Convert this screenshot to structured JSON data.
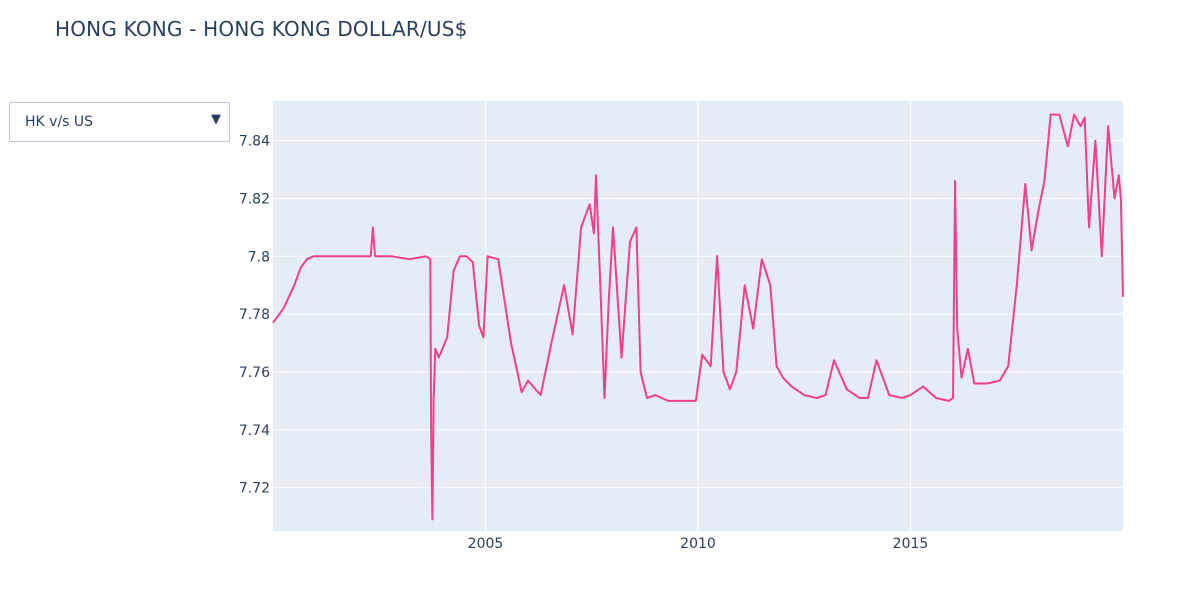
{
  "title": "HONG KONG - HONG KONG DOLLAR/US$",
  "dropdown": {
    "selected": "HK v/s US",
    "arrow_icon": "triangle-down-icon"
  },
  "colors": {
    "line": "#f0408a",
    "plot_bg": "#e5ecf6",
    "grid": "#ffffff",
    "text": "#2a3f5f"
  },
  "chart_data": {
    "type": "line",
    "title": "HONG KONG - HONG KONG DOLLAR/US$",
    "xlabel": "",
    "ylabel": "",
    "xlim": [
      2000.0,
      2020.0
    ],
    "ylim": [
      7.705,
      7.8537
    ],
    "x_ticks": [
      2005,
      2010,
      2015
    ],
    "y_ticks": [
      7.72,
      7.74,
      7.76,
      7.78,
      7.8,
      7.82,
      7.84
    ],
    "y_tick_labels": [
      "7.72",
      "7.74",
      "7.76",
      "7.78",
      "7.8",
      "7.82",
      "7.84"
    ],
    "grid": true,
    "series": [
      {
        "x": [
          2000.0,
          2000.25,
          2000.5,
          2000.65,
          2000.8,
          2000.95,
          2001.1,
          2001.3,
          2001.6,
          2002.0,
          2002.3,
          2002.35,
          2002.4,
          2002.8,
          2003.2,
          2003.6,
          2003.7,
          2003.72,
          2003.75,
          2003.78,
          2003.82,
          2003.9,
          2004.1,
          2004.25,
          2004.4,
          2004.55,
          2004.7,
          2004.85,
          2004.95,
          2005.05,
          2005.3,
          2005.6,
          2005.75,
          2005.85,
          2006.0,
          2006.3,
          2006.55,
          2006.85,
          2007.05,
          2007.25,
          2007.45,
          2007.55,
          2007.6,
          2007.7,
          2007.8,
          2007.9,
          2008.0,
          2008.2,
          2008.4,
          2008.55,
          2008.65,
          2008.8,
          2009.0,
          2009.3,
          2009.6,
          2009.95,
          2010.1,
          2010.3,
          2010.45,
          2010.6,
          2010.75,
          2010.9,
          2011.1,
          2011.3,
          2011.5,
          2011.7,
          2011.85,
          2012.0,
          2012.2,
          2012.5,
          2012.8,
          2013.0,
          2013.2,
          2013.5,
          2013.8,
          2014.0,
          2014.2,
          2014.5,
          2014.8,
          2015.0,
          2015.3,
          2015.6,
          2015.9,
          2016.0,
          2016.05,
          2016.1,
          2016.2,
          2016.35,
          2016.5,
          2016.8,
          2017.1,
          2017.3,
          2017.5,
          2017.7,
          2017.85,
          2018.0,
          2018.15,
          2018.3,
          2018.5,
          2018.7,
          2018.85,
          2019.0,
          2019.1,
          2019.2,
          2019.35,
          2019.5,
          2019.65,
          2019.8,
          2019.9,
          2019.95,
          2020.0
        ],
        "values": [
          7.777,
          7.782,
          7.79,
          7.796,
          7.799,
          7.8,
          7.8,
          7.8,
          7.8,
          7.8,
          7.8,
          7.81,
          7.8,
          7.8,
          7.799,
          7.8,
          7.799,
          7.74,
          7.709,
          7.75,
          7.768,
          7.765,
          7.772,
          7.795,
          7.8,
          7.8,
          7.798,
          7.776,
          7.772,
          7.8,
          7.799,
          7.77,
          7.76,
          7.753,
          7.757,
          7.752,
          7.77,
          7.79,
          7.773,
          7.81,
          7.818,
          7.808,
          7.828,
          7.79,
          7.751,
          7.785,
          7.81,
          7.765,
          7.805,
          7.81,
          7.76,
          7.751,
          7.752,
          7.75,
          7.75,
          7.75,
          7.766,
          7.762,
          7.8,
          7.76,
          7.754,
          7.76,
          7.79,
          7.775,
          7.799,
          7.79,
          7.762,
          7.758,
          7.755,
          7.752,
          7.751,
          7.752,
          7.764,
          7.754,
          7.751,
          7.751,
          7.764,
          7.752,
          7.751,
          7.752,
          7.755,
          7.751,
          7.75,
          7.751,
          7.826,
          7.775,
          7.758,
          7.768,
          7.756,
          7.756,
          7.757,
          7.762,
          7.79,
          7.825,
          7.802,
          7.815,
          7.826,
          7.849,
          7.849,
          7.838,
          7.849,
          7.845,
          7.848,
          7.81,
          7.84,
          7.8,
          7.845,
          7.82,
          7.828,
          7.82,
          7.786
        ]
      }
    ]
  }
}
